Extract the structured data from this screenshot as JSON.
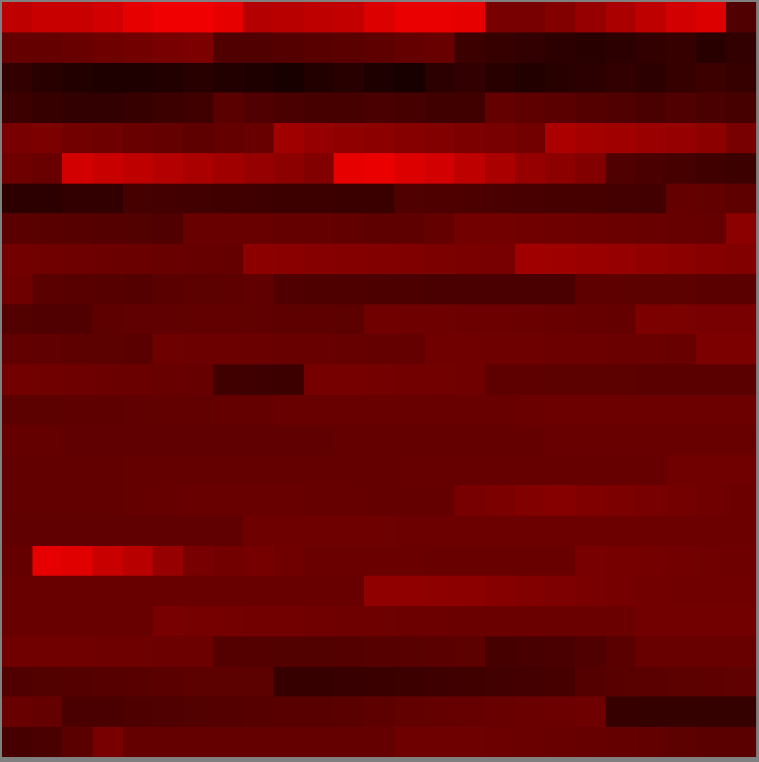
{
  "chart_data": {
    "type": "heatmap",
    "color": "#ff0000",
    "tick_labels": false,
    "grid": false,
    "zlim": [
      0,
      255
    ],
    "z": [
      [
        190,
        200,
        200,
        210,
        230,
        240,
        240,
        230,
        180,
        185,
        190,
        195,
        220,
        235,
        235,
        230,
        120,
        120,
        130,
        150,
        170,
        190,
        210,
        220,
        80
      ],
      [
        100,
        100,
        105,
        110,
        115,
        120,
        125,
        80,
        80,
        85,
        88,
        90,
        95,
        100,
        105,
        60,
        55,
        50,
        45,
        40,
        45,
        50,
        55,
        40,
        50
      ],
      [
        50,
        40,
        35,
        30,
        30,
        35,
        40,
        35,
        30,
        25,
        35,
        40,
        30,
        25,
        45,
        50,
        40,
        35,
        40,
        45,
        50,
        45,
        55,
        60,
        55
      ],
      [
        60,
        55,
        50,
        50,
        55,
        60,
        65,
        90,
        80,
        75,
        70,
        70,
        75,
        70,
        65,
        65,
        100,
        95,
        90,
        85,
        80,
        75,
        80,
        75,
        70
      ],
      [
        120,
        125,
        115,
        110,
        105,
        100,
        95,
        100,
        105,
        160,
        150,
        145,
        140,
        135,
        130,
        125,
        120,
        115,
        170,
        165,
        160,
        155,
        150,
        140,
        120
      ],
      [
        110,
        105,
        210,
        200,
        190,
        180,
        170,
        160,
        150,
        140,
        130,
        230,
        235,
        220,
        210,
        190,
        170,
        150,
        140,
        130,
        80,
        75,
        70,
        65,
        60
      ],
      [
        45,
        45,
        50,
        50,
        70,
        68,
        66,
        64,
        62,
        60,
        60,
        58,
        58,
        80,
        78,
        76,
        74,
        72,
        70,
        70,
        68,
        66,
        100,
        98,
        95
      ],
      [
        90,
        88,
        86,
        84,
        82,
        80,
        105,
        105,
        105,
        100,
        100,
        98,
        95,
        95,
        100,
        115,
        115,
        112,
        110,
        108,
        106,
        104,
        102,
        100,
        140
      ],
      [
        115,
        112,
        110,
        108,
        106,
        104,
        102,
        100,
        140,
        138,
        135,
        132,
        130,
        128,
        125,
        122,
        120,
        160,
        158,
        155,
        150,
        145,
        140,
        135,
        130
      ],
      [
        110,
        90,
        88,
        86,
        84,
        90,
        92,
        94,
        96,
        80,
        78,
        78,
        76,
        76,
        75,
        75,
        74,
        74,
        74,
        95,
        95,
        92,
        92,
        90,
        90
      ],
      [
        82,
        80,
        80,
        95,
        96,
        97,
        98,
        98,
        96,
        95,
        94,
        92,
        112,
        110,
        110,
        108,
        108,
        106,
        104,
        102,
        100,
        125,
        123,
        120,
        120
      ],
      [
        98,
        96,
        94,
        92,
        90,
        110,
        108,
        108,
        106,
        104,
        104,
        102,
        100,
        100,
        112,
        112,
        110,
        110,
        108,
        108,
        106,
        106,
        105,
        125,
        125
      ],
      [
        115,
        112,
        110,
        108,
        106,
        104,
        102,
        65,
        62,
        60,
        118,
        118,
        116,
        115,
        114,
        112,
        95,
        94,
        93,
        92,
        92,
        91,
        90,
        90,
        90
      ],
      [
        92,
        92,
        94,
        95,
        96,
        98,
        98,
        100,
        100,
        104,
        104,
        104,
        104,
        104,
        104,
        104,
        104,
        106,
        108,
        108,
        108,
        108,
        108,
        108,
        108
      ],
      [
        100,
        100,
        96,
        96,
        96,
        96,
        96,
        96,
        96,
        96,
        96,
        100,
        100,
        100,
        100,
        100,
        100,
        100,
        104,
        104,
        104,
        104,
        104,
        104,
        104
      ],
      [
        98,
        98,
        98,
        98,
        100,
        100,
        100,
        100,
        100,
        100,
        100,
        100,
        100,
        102,
        102,
        102,
        102,
        102,
        102,
        102,
        102,
        102,
        112,
        112,
        112
      ],
      [
        98,
        98,
        98,
        98,
        100,
        102,
        104,
        104,
        104,
        104,
        102,
        102,
        100,
        100,
        100,
        120,
        125,
        130,
        135,
        128,
        124,
        120,
        116,
        112,
        108
      ],
      [
        96,
        96,
        96,
        96,
        96,
        96,
        96,
        96,
        110,
        110,
        110,
        110,
        110,
        108,
        108,
        108,
        108,
        108,
        108,
        108,
        108,
        108,
        108,
        108,
        108
      ],
      [
        100,
        230,
        225,
        200,
        185,
        150,
        120,
        115,
        118,
        112,
        106,
        106,
        106,
        106,
        104,
        104,
        104,
        104,
        104,
        120,
        118,
        116,
        114,
        112,
        110
      ],
      [
        105,
        105,
        105,
        105,
        105,
        104,
        104,
        104,
        104,
        104,
        104,
        104,
        145,
        145,
        142,
        140,
        135,
        130,
        126,
        122,
        118,
        114,
        112,
        112,
        112
      ],
      [
        105,
        105,
        105,
        105,
        105,
        120,
        118,
        116,
        115,
        114,
        112,
        110,
        110,
        108,
        108,
        106,
        106,
        106,
        106,
        106,
        106,
        115,
        115,
        115,
        115
      ],
      [
        112,
        112,
        112,
        110,
        110,
        108,
        108,
        85,
        84,
        82,
        82,
        84,
        86,
        88,
        90,
        92,
        70,
        72,
        74,
        80,
        90,
        104,
        104,
        104,
        104
      ],
      [
        80,
        82,
        84,
        86,
        88,
        90,
        92,
        92,
        92,
        55,
        55,
        56,
        58,
        60,
        62,
        64,
        66,
        68,
        70,
        85,
        88,
        90,
        92,
        94,
        96
      ],
      [
        105,
        100,
        75,
        75,
        78,
        80,
        82,
        84,
        86,
        88,
        88,
        90,
        95,
        98,
        100,
        102,
        104,
        106,
        108,
        110,
        55,
        52,
        52,
        52,
        52
      ],
      [
        70,
        75,
        90,
        120,
        100,
        100,
        100,
        100,
        100,
        100,
        100,
        100,
        100,
        110,
        110,
        110,
        108,
        106,
        104,
        102,
        100,
        98,
        92,
        90,
        90
      ]
    ]
  }
}
